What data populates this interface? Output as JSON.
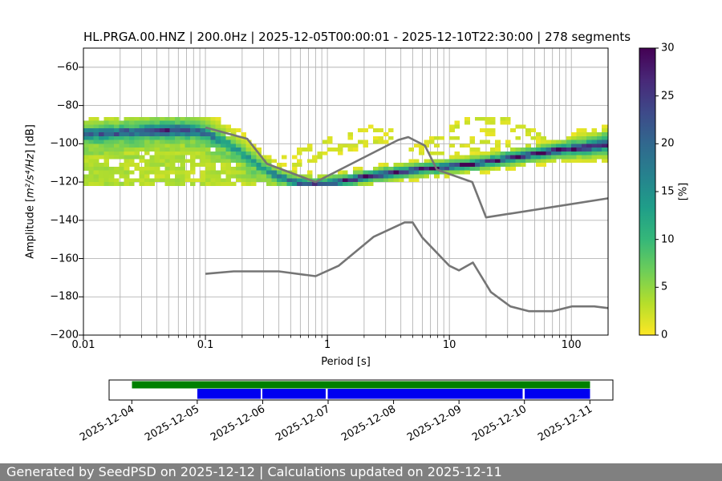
{
  "chart_data": {
    "type": "heatmap",
    "subtype": "ppsd-probability-histogram",
    "title": "HL.PRGA.00.HNZ | 200.0Hz | 2025-12-05T00:00:01 - 2025-12-10T22:30:00 | 278 segments",
    "xlabel": "Period [s]",
    "ylabel": "Amplitude [m²/s⁴/Hz] [dB]",
    "ylabel_parts": {
      "prefix": "Amplitude [",
      "math": "m²/s⁴/Hz",
      "suffix": "] [dB]"
    },
    "x_scale": "log",
    "xlim": [
      0.01,
      200
    ],
    "ylim": [
      -200,
      -50
    ],
    "x_tick_values": [
      0.01,
      0.1,
      1,
      10,
      100
    ],
    "x_tick_labels": [
      "0.01",
      "0.1",
      "1",
      "10",
      "100"
    ],
    "y_tick_values": [
      -60,
      -80,
      -100,
      -120,
      -140,
      -160,
      -180,
      -200
    ],
    "y_tick_labels": [
      "−60",
      "−80",
      "−100",
      "−120",
      "−140",
      "−160",
      "−180",
      "−200"
    ],
    "grid": true,
    "colors": {
      "grid": "#b4b4b4",
      "axis": "#000000",
      "noise_model": "#757575",
      "background": "#ffffff"
    },
    "colorbar": {
      "label": "[%]",
      "min": 0,
      "max": 30,
      "tick_values": [
        0,
        5,
        10,
        15,
        20,
        25,
        30
      ],
      "tick_labels": [
        "0",
        "5",
        "10",
        "15",
        "20",
        "25",
        "30"
      ],
      "viridis_stops": [
        "#440154",
        "#482878",
        "#3e4989",
        "#31688e",
        "#26828e",
        "#1f9e89",
        "#35b779",
        "#6ece58",
        "#b5de2b",
        "#fde725"
      ]
    },
    "noise_models": {
      "high": [
        [
          0.1,
          -91.5
        ],
        [
          0.22,
          -97.4
        ],
        [
          0.32,
          -110.5
        ],
        [
          0.8,
          -120
        ],
        [
          3.8,
          -98
        ],
        [
          4.6,
          -96.5
        ],
        [
          6.3,
          -101
        ],
        [
          7.9,
          -113.5
        ],
        [
          15.4,
          -120
        ],
        [
          20,
          -138.5
        ],
        [
          200,
          -128.5
        ]
      ],
      "low": [
        [
          0.1,
          -168
        ],
        [
          0.17,
          -166.7
        ],
        [
          0.4,
          -166.7
        ],
        [
          0.8,
          -169.2
        ],
        [
          1.24,
          -163.7
        ],
        [
          2.4,
          -148.6
        ],
        [
          4.3,
          -141.1
        ],
        [
          5,
          -141.1
        ],
        [
          6,
          -149
        ],
        [
          10,
          -163.8
        ],
        [
          12,
          -166.2
        ],
        [
          15.6,
          -162.1
        ],
        [
          21.9,
          -177.5
        ],
        [
          31.6,
          -185
        ],
        [
          45,
          -187.5
        ],
        [
          70,
          -187.5
        ],
        [
          101,
          -185
        ],
        [
          154,
          -185
        ],
        [
          200,
          -185.9
        ]
      ]
    },
    "psd_histogram": {
      "bins_per_decade": 24,
      "db_bin": 2,
      "amp_floor": -122.6,
      "amp_ceiling": -86.0,
      "mode_curve": [
        [
          0.01,
          -95.0,
          20,
          2.2,
          3.4,
          11.0
        ],
        [
          0.02,
          -94.3,
          22,
          2.2,
          3.2,
          11.0
        ],
        [
          0.04,
          -93.2,
          25,
          2.2,
          3.0,
          11.0
        ],
        [
          0.063,
          -92.8,
          25,
          2.2,
          3.0,
          10.5
        ],
        [
          0.1,
          -94.2,
          20,
          2.4,
          3.4,
          10.0
        ],
        [
          0.14,
          -99.0,
          14,
          2.6,
          4.2,
          8.5
        ],
        [
          0.2,
          -105.0,
          13,
          2.6,
          4.2,
          7.0
        ],
        [
          0.28,
          -112.0,
          14,
          2.2,
          4.0,
          5.0
        ],
        [
          0.4,
          -117.5,
          18,
          1.7,
          3.0,
          3.2
        ],
        [
          0.56,
          -120.2,
          22,
          1.4,
          2.6,
          2.2
        ],
        [
          0.8,
          -121.2,
          26,
          1.2,
          2.4,
          1.8
        ],
        [
          1.26,
          -119.8,
          28,
          1.1,
          2.4,
          1.6
        ],
        [
          2.0,
          -117.5,
          30,
          1.1,
          2.4,
          1.6
        ],
        [
          3.2,
          -115.6,
          30,
          1.1,
          2.6,
          1.6
        ],
        [
          5.0,
          -113.9,
          30,
          1.1,
          2.8,
          1.6
        ],
        [
          7.9,
          -112.6,
          30,
          1.1,
          2.8,
          1.6
        ],
        [
          12.6,
          -111.3,
          30,
          1.1,
          2.8,
          1.6
        ],
        [
          20.0,
          -109.6,
          30,
          1.1,
          2.6,
          1.6
        ],
        [
          32.0,
          -107.4,
          30,
          1.2,
          2.4,
          1.7
        ],
        [
          50.0,
          -105.3,
          30,
          1.2,
          2.4,
          1.8
        ],
        [
          79.0,
          -103.5,
          30,
          1.3,
          2.6,
          2.0
        ],
        [
          126.0,
          -101.9,
          30,
          1.6,
          3.2,
          2.6
        ],
        [
          200.0,
          -100.2,
          30,
          2.0,
          4.0,
          3.4
        ]
      ],
      "left_fill": {
        "t_range": [
          0.01,
          0.63
        ],
        "floor": -122.2,
        "base": 3.2,
        "near_peak": 4.2,
        "near_sigma": 5.5,
        "fade_start_lt": -0.62,
        "fade_end_lt": -0.2
      },
      "secondary_curves": [
        {
          "name": "eye-upper",
          "intensity": 2.4,
          "gap": 0.3,
          "points": [
            [
              0.35,
              -111.5
            ],
            [
              0.6,
              -104
            ],
            [
              1.0,
              -98.5
            ],
            [
              1.8,
              -94.8
            ],
            [
              2.8,
              -93.6
            ],
            [
              3.6,
              -93.8
            ]
          ]
        },
        {
          "name": "eye-lower",
          "intensity": 2.4,
          "gap": 0.3,
          "points": [
            [
              0.35,
              -115
            ],
            [
              0.7,
              -109
            ],
            [
              1.2,
              -104
            ],
            [
              2.0,
              -100
            ],
            [
              3.0,
              -97.6
            ],
            [
              4.5,
              -96.8
            ]
          ]
        },
        {
          "name": "eye-inner",
          "intensity": 2.2,
          "gap": 0.4,
          "points": [
            [
              0.75,
              -106.5
            ],
            [
              1.3,
              -101.5
            ],
            [
              2.2,
              -98.2
            ]
          ]
        },
        {
          "name": "eye-top",
          "intensity": 2.0,
          "gap": 0.55,
          "points": [
            [
              1.0,
              -92.8
            ],
            [
              2.0,
              -92.4
            ],
            [
              3.2,
              -92.8
            ]
          ]
        },
        {
          "name": "fan-1",
          "intensity": 2.3,
          "gap": 0.4,
          "points": [
            [
              5,
              -95.5
            ],
            [
              9,
              -96.5
            ],
            [
              16,
              -98.5
            ],
            [
              28,
              -100.5
            ],
            [
              45,
              -101.8
            ]
          ]
        },
        {
          "name": "fan-2",
          "intensity": 2.3,
          "gap": 0.4,
          "points": [
            [
              5,
              -99.5
            ],
            [
              10,
              -101
            ],
            [
              18,
              -103
            ],
            [
              30,
              -104.6
            ]
          ]
        },
        {
          "name": "fan-3",
          "intensity": 2.2,
          "gap": 0.35,
          "points": [
            [
              4.5,
              -103.5
            ],
            [
              8,
              -105.2
            ],
            [
              14,
              -106.8
            ]
          ]
        },
        {
          "name": "hill-outer",
          "intensity": 2.6,
          "gap": 0.28,
          "points": [
            [
              7,
              -99
            ],
            [
              9,
              -94.5
            ],
            [
              12,
              -90
            ],
            [
              16,
              -87.3
            ],
            [
              21,
              -86.2
            ],
            [
              27,
              -86.8
            ],
            [
              34,
              -89
            ],
            [
              43,
              -92.5
            ],
            [
              55,
              -96
            ],
            [
              65,
              -98.5
            ]
          ]
        },
        {
          "name": "hill-inner",
          "intensity": 2.3,
          "gap": 0.45,
          "points": [
            [
              11,
              -95
            ],
            [
              14,
              -91.8
            ],
            [
              19,
              -89.6
            ],
            [
              25,
              -89.3
            ],
            [
              32,
              -91.5
            ],
            [
              40,
              -94.5
            ],
            [
              50,
              -97.5
            ]
          ]
        },
        {
          "name": "hill-inner-2",
          "intensity": 2.1,
          "gap": 0.5,
          "points": [
            [
              14,
              -97.5
            ],
            [
              20,
              -93.5
            ],
            [
              28,
              -93.8
            ],
            [
              38,
              -97.2
            ]
          ]
        },
        {
          "name": "right-top",
          "intensity": 2.4,
          "gap": 0.3,
          "points": [
            [
              100,
              -95
            ],
            [
              140,
              -93.8
            ],
            [
              200,
              -93.2
            ]
          ]
        }
      ]
    }
  },
  "timeline": {
    "tick_dates": [
      "2025-12-04",
      "2025-12-05",
      "2025-12-06",
      "2025-12-07",
      "2025-12-08",
      "2025-12-09",
      "2025-12-10",
      "2025-12-11"
    ],
    "rows": [
      {
        "name": "coverage",
        "color": "#008000",
        "segments_days": [
          [
            0.0,
            7.0
          ]
        ]
      },
      {
        "name": "processed",
        "color": "#0000f0",
        "segments_days": [
          [
            1.0,
            1.967
          ],
          [
            1.997,
            2.963
          ],
          [
            2.995,
            5.973
          ],
          [
            6.005,
            7.0
          ]
        ]
      }
    ]
  },
  "footer": {
    "text": "Generated by SeedPSD on 2025-12-12 | Calculations updated on 2025-12-11",
    "background": "#808080",
    "color": "#ffffff"
  }
}
